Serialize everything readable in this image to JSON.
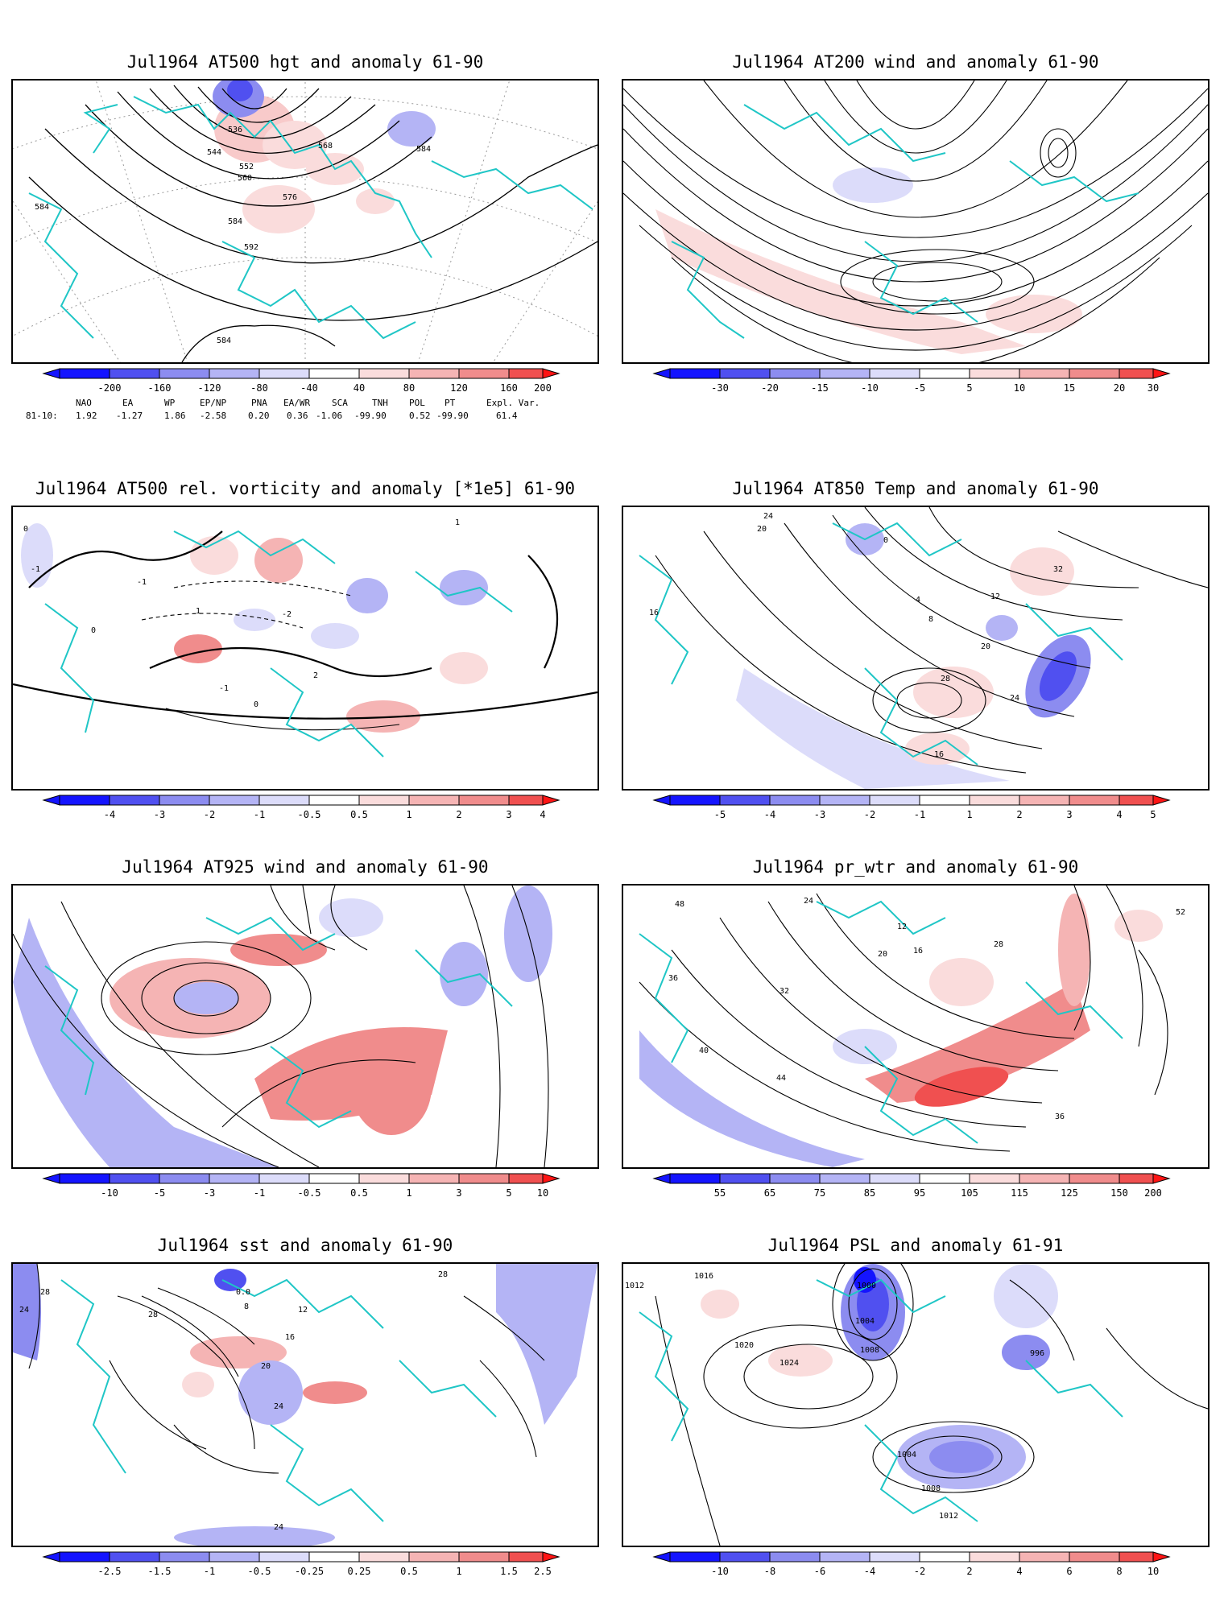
{
  "panels": [
    {
      "title": "Jul1964 AT500 hgt and anomaly 61-90",
      "contour_labels": [
        "536",
        "544",
        "552",
        "560",
        "568",
        "576",
        "584",
        "584",
        "592",
        "584",
        "584"
      ],
      "colorbar": [
        "-200",
        "-160",
        "-120",
        "-80",
        "-40",
        "40",
        "80",
        "120",
        "160",
        "200"
      ]
    },
    {
      "title": "Jul1964 AT200 wind and anomaly 61-90",
      "contour_labels": [],
      "colorbar": [
        "-30",
        "-20",
        "-15",
        "-10",
        "-5",
        "5",
        "10",
        "15",
        "20",
        "30"
      ]
    },
    {
      "title": "Jul1964 AT500 rel. vorticity and anomaly [*1e5] 61-90",
      "contour_labels": [
        "0",
        "-1",
        "-2",
        "1",
        "2",
        "0",
        "-1",
        "1",
        "0",
        "-1"
      ],
      "colorbar": [
        "-4",
        "-3",
        "-2",
        "-1",
        "-0.5",
        "0.5",
        "1",
        "2",
        "3",
        "4"
      ]
    },
    {
      "title": "Jul1964 AT850 Temp and anomaly 61-90",
      "contour_labels": [
        "24",
        "20",
        "16",
        "12",
        "8",
        "4",
        "0",
        "28",
        "32",
        "20",
        "16",
        "24"
      ],
      "colorbar": [
        "-5",
        "-4",
        "-3",
        "-2",
        "-1",
        "1",
        "2",
        "3",
        "4",
        "5"
      ]
    },
    {
      "title": "Jul1964 AT925 wind and anomaly 61-90",
      "contour_labels": [],
      "colorbar": [
        "-10",
        "-5",
        "-3",
        "-1",
        "-0.5",
        "0.5",
        "1",
        "3",
        "5",
        "10"
      ]
    },
    {
      "title": "Jul1964 pr_wtr and anomaly 61-90",
      "contour_labels": [
        "48",
        "36",
        "32",
        "24",
        "12",
        "16",
        "20",
        "40",
        "44",
        "52",
        "28",
        "36"
      ],
      "colorbar": [
        "55",
        "65",
        "75",
        "85",
        "95",
        "105",
        "115",
        "125",
        "150",
        "200"
      ]
    },
    {
      "title": "Jul1964 sst and anomaly 61-90",
      "contour_labels": [
        "24",
        "28",
        "28",
        "8",
        "12",
        "16",
        "20",
        "24",
        "28",
        "24",
        "0.0"
      ],
      "colorbar": [
        "-2.5",
        "-1.5",
        "-1",
        "-0.5",
        "-0.25",
        "0.25",
        "0.5",
        "1",
        "1.5",
        "2.5"
      ]
    },
    {
      "title": "Jul1964 PSL and anomaly 61-91",
      "contour_labels": [
        "1016",
        "1012",
        "1020",
        "1024",
        "1000",
        "1004",
        "1008",
        "996",
        "1004",
        "1008",
        "1012"
      ],
      "colorbar": [
        "-10",
        "-8",
        "-6",
        "-4",
        "-2",
        "2",
        "4",
        "6",
        "8",
        "10"
      ]
    }
  ],
  "teleconnection": {
    "headers": [
      "NAO",
      "EA",
      "WP",
      "EP/NP",
      "PNA",
      "EA/WR",
      "SCA",
      "TNH",
      "POL",
      "PT",
      "Expl. Var."
    ],
    "row_label": "81-10:",
    "values": [
      "1.92",
      "-1.27",
      "1.86",
      "-2.58",
      "0.20",
      "0.36",
      "-1.06",
      "-99.90",
      "0.52",
      "-99.90",
      "61.4"
    ]
  },
  "colors": {
    "coast": "#1fc6c6",
    "negative": [
      "#1414ff",
      "#5050f0",
      "#8c8cf0",
      "#b4b4f5",
      "#dcdcfa"
    ],
    "positive": [
      "#fadcdc",
      "#f5b4b4",
      "#f08c8c",
      "#f05050",
      "#ff1414"
    ],
    "contour": "#000000",
    "grid": "#9a9a9a"
  }
}
